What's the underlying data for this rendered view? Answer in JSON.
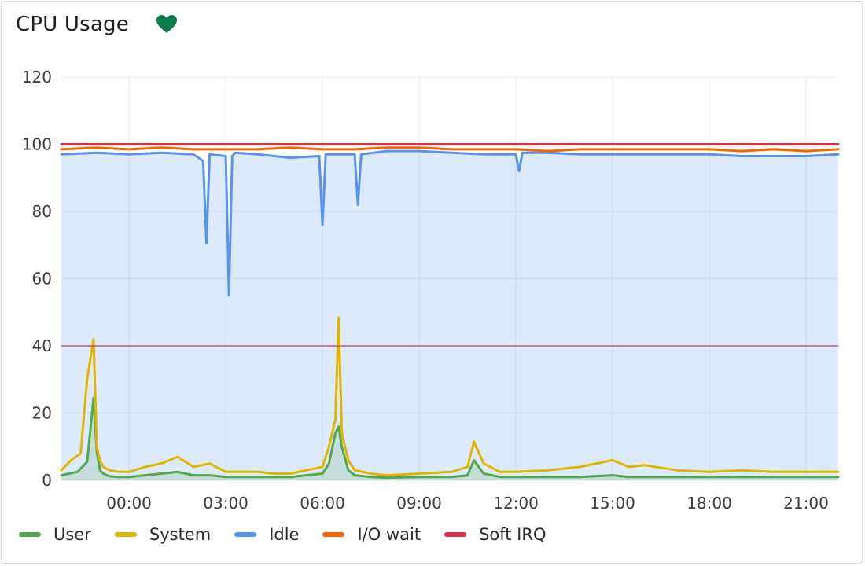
{
  "panel": {
    "title": "CPU Usage",
    "status_icon": "heart-icon",
    "status_color": "#0a7d4f"
  },
  "chart_data": {
    "type": "line",
    "title": "CPU Usage",
    "xlabel": "",
    "ylabel": "",
    "ylim": [
      0,
      120
    ],
    "yticks": [
      0,
      20,
      40,
      60,
      80,
      100,
      120
    ],
    "xlim": [
      -2.1,
      22.0
    ],
    "xticks": [
      0,
      3,
      6,
      9,
      12,
      15,
      18,
      21
    ],
    "xtick_labels": [
      "00:00",
      "03:00",
      "06:00",
      "09:00",
      "12:00",
      "15:00",
      "18:00",
      "21:00"
    ],
    "threshold": {
      "value": 40,
      "color": "#c0587a"
    },
    "grid": true,
    "legend_position": "bottom-left",
    "series": [
      {
        "name": "User",
        "color": "#56a64b",
        "fill": true,
        "stacked": false,
        "x": [
          -2.1,
          -1.6,
          -1.3,
          -1.1,
          -1.0,
          -0.9,
          -0.8,
          -0.6,
          -0.3,
          0.0,
          0.5,
          1.0,
          1.5,
          2.0,
          2.5,
          3.0,
          3.5,
          4.0,
          4.5,
          5.0,
          5.5,
          6.0,
          6.2,
          6.4,
          6.5,
          6.6,
          6.8,
          7.0,
          7.5,
          8.0,
          9.0,
          10.0,
          10.5,
          10.7,
          11.0,
          11.5,
          12.0,
          13.0,
          14.0,
          15.0,
          15.5,
          16.0,
          17.0,
          18.0,
          19.0,
          20.0,
          21.0,
          22.0
        ],
        "values": [
          1.5,
          2.5,
          5.5,
          24.5,
          8.5,
          3.0,
          2.0,
          1.2,
          1.0,
          1.0,
          1.5,
          2.0,
          2.5,
          1.5,
          1.5,
          1.0,
          1.0,
          1.0,
          1.0,
          1.0,
          1.5,
          2.0,
          5.0,
          14.0,
          16.0,
          10.0,
          3.0,
          1.5,
          1.0,
          0.8,
          1.0,
          1.0,
          1.5,
          6.0,
          2.0,
          1.0,
          1.0,
          1.0,
          1.0,
          1.5,
          1.0,
          1.0,
          1.0,
          1.0,
          1.0,
          1.0,
          1.0,
          1.0
        ]
      },
      {
        "name": "System",
        "color": "#e0b400",
        "fill": false,
        "stacked": false,
        "x": [
          -2.1,
          -1.8,
          -1.5,
          -1.3,
          -1.1,
          -1.0,
          -0.9,
          -0.8,
          -0.6,
          -0.3,
          0.0,
          0.5,
          1.0,
          1.5,
          2.0,
          2.5,
          3.0,
          3.5,
          4.0,
          4.5,
          5.0,
          5.5,
          6.0,
          6.2,
          6.4,
          6.5,
          6.6,
          6.8,
          7.0,
          7.5,
          8.0,
          9.0,
          10.0,
          10.5,
          10.7,
          11.0,
          11.5,
          12.0,
          13.0,
          14.0,
          15.0,
          15.5,
          16.0,
          17.0,
          18.0,
          19.0,
          20.0,
          21.0,
          22.0
        ],
        "values": [
          3.0,
          6.0,
          8.0,
          30.0,
          42.0,
          10.0,
          6.0,
          4.0,
          3.0,
          2.5,
          2.5,
          4.0,
          5.0,
          7.0,
          4.0,
          5.0,
          2.5,
          2.5,
          2.5,
          2.0,
          2.0,
          3.0,
          4.0,
          10.0,
          18.0,
          48.5,
          14.0,
          6.0,
          3.0,
          2.0,
          1.5,
          2.0,
          2.5,
          4.0,
          11.5,
          5.0,
          2.5,
          2.5,
          3.0,
          4.0,
          6.0,
          4.0,
          4.5,
          3.0,
          2.5,
          3.0,
          2.5,
          2.5,
          2.5
        ]
      },
      {
        "name": "Idle",
        "color": "#5794f2",
        "fill": true,
        "stacked": false,
        "x": [
          -2.1,
          -1.0,
          0.0,
          1.0,
          2.0,
          2.3,
          2.4,
          2.5,
          3.0,
          3.1,
          3.2,
          3.3,
          4.0,
          5.0,
          5.9,
          6.0,
          6.1,
          7.0,
          7.1,
          7.2,
          8.0,
          9.0,
          10.0,
          11.0,
          12.0,
          12.1,
          12.2,
          13.0,
          14.0,
          15.0,
          16.0,
          17.0,
          18.0,
          19.0,
          20.0,
          21.0,
          22.0
        ],
        "values": [
          97.0,
          97.5,
          97.0,
          97.5,
          97.0,
          95.0,
          70.5,
          97.0,
          96.5,
          55.0,
          96.5,
          97.5,
          97.0,
          96.0,
          96.5,
          76.0,
          97.0,
          97.0,
          82.0,
          97.0,
          98.0,
          98.0,
          97.5,
          97.0,
          97.0,
          92.0,
          97.5,
          97.5,
          97.0,
          97.0,
          97.0,
          97.0,
          97.0,
          96.5,
          96.5,
          96.5,
          97.0
        ]
      },
      {
        "name": "I/O wait",
        "color": "#fa6400",
        "fill": false,
        "stacked": false,
        "x": [
          -2.1,
          -1.0,
          0.0,
          1.0,
          2.0,
          3.0,
          4.0,
          5.0,
          6.0,
          7.0,
          8.0,
          9.0,
          10.0,
          11.0,
          12.0,
          13.0,
          14.0,
          15.0,
          16.0,
          17.0,
          18.0,
          19.0,
          20.0,
          21.0,
          22.0
        ],
        "values": [
          98.5,
          99.0,
          98.5,
          99.0,
          98.5,
          98.5,
          98.5,
          99.0,
          98.5,
          98.5,
          99.0,
          99.0,
          98.5,
          98.5,
          98.5,
          98.0,
          98.5,
          98.5,
          98.5,
          98.5,
          98.5,
          98.0,
          98.5,
          98.0,
          98.5
        ]
      },
      {
        "name": "Soft IRQ",
        "color": "#e02f44",
        "fill": false,
        "stacked": false,
        "x": [
          -2.1,
          22.0
        ],
        "values": [
          100.0,
          100.0
        ]
      }
    ]
  }
}
